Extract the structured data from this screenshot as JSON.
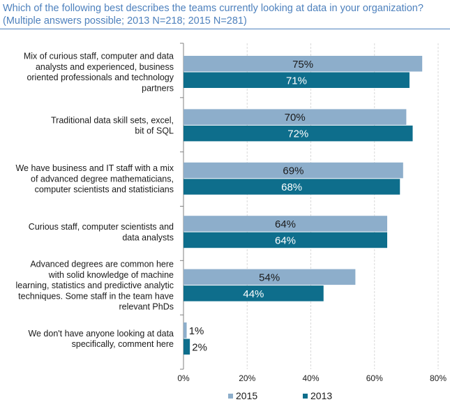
{
  "title": {
    "line1": "Which of the following best describes the teams currently looking at data in your organization?",
    "line2": "(Multiple answers possible; 2013 N=218; 2015 N=281)"
  },
  "colors": {
    "series_2015": "#8daecb",
    "series_2013": "#0e6e8c",
    "gridline": "#d9d9d9",
    "axis": "#808080",
    "title": "#4e81bd",
    "label_2015": "#1a1a1a",
    "label_2013": "#ffffff"
  },
  "chart_data": {
    "type": "bar",
    "orientation": "horizontal",
    "categories": [
      "Mix of curious staff, computer and data analysts and experienced, business oriented professionals and technology partners",
      "Traditional data skill sets, excel, bit of SQL",
      "We have business and IT staff with a mix of advanced degree mathematicians, computer scientists and statisticians",
      "Curious staff, computer scientists and data analysts",
      "Advanced degrees are common here with solid knowledge of machine learning, statistics and predictive analytic techniques. Some staff in the team have relevant PhDs",
      "We don't have anyone looking at data specifically, comment here"
    ],
    "category_lines": [
      [
        "Mix of curious staff, computer and data",
        "analysts and experienced, business",
        "oriented professionals and technology",
        "partners"
      ],
      [
        "Traditional data skill sets, excel,",
        "bit of SQL"
      ],
      [
        "We have business and IT staff with a mix",
        "of advanced degree mathematicians,",
        "computer scientists and statisticians"
      ],
      [
        "Curious staff, computer scientists and",
        "data analysts"
      ],
      [
        "Advanced degrees are common here",
        "with solid knowledge of machine",
        "learning, statistics and predictive analytic",
        "techniques. Some staff in the team have",
        "relevant PhDs"
      ],
      [
        "We don't have  anyone looking at data",
        "specifically, comment here"
      ]
    ],
    "series": [
      {
        "name": "2015",
        "values": [
          75,
          70,
          69,
          64,
          54,
          1
        ],
        "labels": [
          "75%",
          "70%",
          "69%",
          "64%",
          "54%",
          "1%"
        ]
      },
      {
        "name": "2013",
        "values": [
          71,
          72,
          68,
          64,
          44,
          2
        ],
        "labels": [
          "71%",
          "72%",
          "68%",
          "64%",
          "44%",
          "2%"
        ]
      }
    ],
    "xlim": [
      0,
      80
    ],
    "xticks": [
      0,
      20,
      40,
      60,
      80
    ],
    "xtick_labels": [
      "0%",
      "20%",
      "40%",
      "60%",
      "80%"
    ],
    "grid": "vertical",
    "legend": "bottom"
  }
}
